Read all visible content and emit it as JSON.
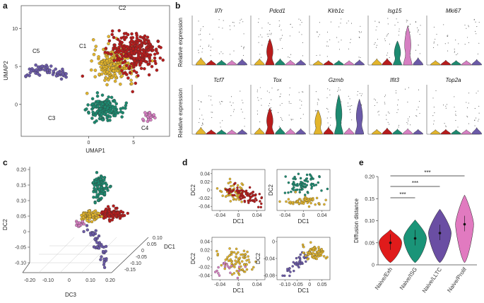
{
  "colors": {
    "C1": "#e3b52c",
    "C2": "#b81c1c",
    "C3": "#1d8a70",
    "C4": "#d67fc2",
    "C5": "#6b5aa8",
    "Exh": "#e01b1b",
    "ISG": "#1a9478",
    "LLTC": "#6a4ea3",
    "Prolif": "#e17ac0"
  },
  "chart_data": [
    {
      "panel": "a",
      "type": "scatter",
      "xlabel": "UMAP1",
      "ylabel": "UMAP2",
      "xticks": [
        0,
        5
      ],
      "yticks": [
        0,
        5,
        10
      ],
      "xlim": [
        -7.5,
        9
      ],
      "ylim": [
        -4.2,
        13
      ],
      "clusters": [
        {
          "name": "C1",
          "cx": 2.8,
          "cy": 5.3,
          "sx": 2.0,
          "sy": 2.0,
          "n": 230
        },
        {
          "name": "C2",
          "cx": 5.2,
          "cy": 6.8,
          "sx": 2.5,
          "sy": 2.3,
          "n": 300
        },
        {
          "name": "C3",
          "cx": 1.8,
          "cy": -0.5,
          "sx": 1.6,
          "sy": 1.3,
          "n": 170
        },
        {
          "name": "C4",
          "cx": 6.7,
          "cy": -1.6,
          "sx": 0.5,
          "sy": 0.6,
          "n": 25
        },
        {
          "name": "C5",
          "cx": -4.6,
          "cy": 4.2,
          "sx": 1.4,
          "sy": 0.6,
          "n": 60
        }
      ],
      "labels": [
        "C1",
        "C2",
        "C3",
        "C4",
        "C5"
      ]
    },
    {
      "panel": "b",
      "type": "violin",
      "ylabel": "Relative expression",
      "groups": [
        "C1",
        "C2",
        "C3",
        "C4",
        "C5"
      ],
      "genes": [
        {
          "name": "Il7r",
          "levels": [
            0.45,
            0.1,
            0.1,
            0.08,
            0.25
          ]
        },
        {
          "name": "Pdcd1",
          "levels": [
            0.3,
            0.6,
            0.3,
            0.1,
            0.15
          ]
        },
        {
          "name": "Klrb1c",
          "levels": [
            0.05,
            0.05,
            0.05,
            0.03,
            0.15
          ]
        },
        {
          "name": "Isg15",
          "levels": [
            0.3,
            0.35,
            0.55,
            0.9,
            0.45
          ]
        },
        {
          "name": "Mki67",
          "levels": [
            0.05,
            0.1,
            0.05,
            0.05,
            0.2
          ]
        },
        {
          "name": "Tcf7",
          "levels": [
            0.4,
            0.05,
            0.05,
            0.05,
            0.1
          ]
        },
        {
          "name": "Tox",
          "levels": [
            0.3,
            0.6,
            0.4,
            0.2,
            0.2
          ]
        },
        {
          "name": "Gzmb",
          "levels": [
            0.55,
            0.4,
            0.9,
            0.3,
            0.8
          ]
        },
        {
          "name": "Ifit3",
          "levels": [
            0.1,
            0.3,
            0.15,
            0.2,
            0.1
          ]
        },
        {
          "name": "Top2a",
          "levels": [
            0.05,
            0.1,
            0.05,
            0.05,
            0.35
          ]
        }
      ]
    },
    {
      "panel": "c",
      "type": "scatter3d",
      "zlabel": "DC2",
      "xlabel": "DC3",
      "ylabel": "DC1",
      "zticks": [
        "0.20",
        "0.15",
        "0.10",
        "0.05",
        "0",
        "-0.05",
        "-0.10"
      ],
      "xticks": [
        "-0.20",
        "-0.10",
        "0",
        "0.10",
        "0.20"
      ],
      "yticks": [
        "0.10",
        "0.05",
        "0",
        "-0.05",
        "-0.10",
        "-0.15"
      ]
    },
    {
      "panel": "d",
      "type": "scatter",
      "subplots": [
        {
          "pos": "top-left",
          "xlabel": "DC1",
          "ylabel": "DC2",
          "xticks": [
            "-0.04",
            "0",
            "0.04"
          ],
          "yticks": [
            "0.04",
            "0.02",
            "0",
            "-0.02",
            "-0.04"
          ],
          "clusters": [
            "C1",
            "C2"
          ]
        },
        {
          "pos": "top-right",
          "xlabel": "DC1",
          "ylabel": "DC2",
          "xticks": [
            "-0.04",
            "0",
            "0.04"
          ],
          "yticks": [],
          "clusters": [
            "C1",
            "C3"
          ]
        },
        {
          "pos": "bottom-left",
          "xlabel": "DC1",
          "ylabel": "DC2",
          "xticks": [
            "-0.04",
            "0",
            "0.04"
          ],
          "yticks": [
            "0.04",
            "0.02",
            "0",
            "-0.02",
            "-0.04"
          ],
          "clusters": [
            "C1",
            "C4"
          ]
        },
        {
          "pos": "bottom-right",
          "xlabel": "DC1",
          "ylabel": "DC2",
          "xticks": [
            "-0.10",
            "-0.05",
            "0",
            "0.05"
          ],
          "yticks": [
            "0",
            "-0.04",
            "-0.08"
          ],
          "clusters": [
            "C1",
            "C5"
          ]
        }
      ]
    },
    {
      "panel": "e",
      "type": "violin",
      "ylabel": "Diffusion distance",
      "categories": [
        "Naive/Exh",
        "Naive/ISG",
        "Naive/LLTC",
        "Naive/Prolif"
      ],
      "medians": [
        0.05,
        0.06,
        0.072,
        0.092
      ],
      "ylim": [
        0,
        0.2
      ],
      "yticks": [
        0,
        0.05,
        0.1,
        0.15,
        0.2
      ],
      "significance": [
        {
          "from": "Naive/Exh",
          "to": "Naive/ISG",
          "label": "***"
        },
        {
          "from": "Naive/Exh",
          "to": "Naive/LLTC",
          "label": "***"
        },
        {
          "from": "Naive/Exh",
          "to": "Naive/Prolif",
          "label": "***"
        }
      ]
    }
  ],
  "panel_labels": [
    "a",
    "b",
    "c",
    "d",
    "e"
  ]
}
